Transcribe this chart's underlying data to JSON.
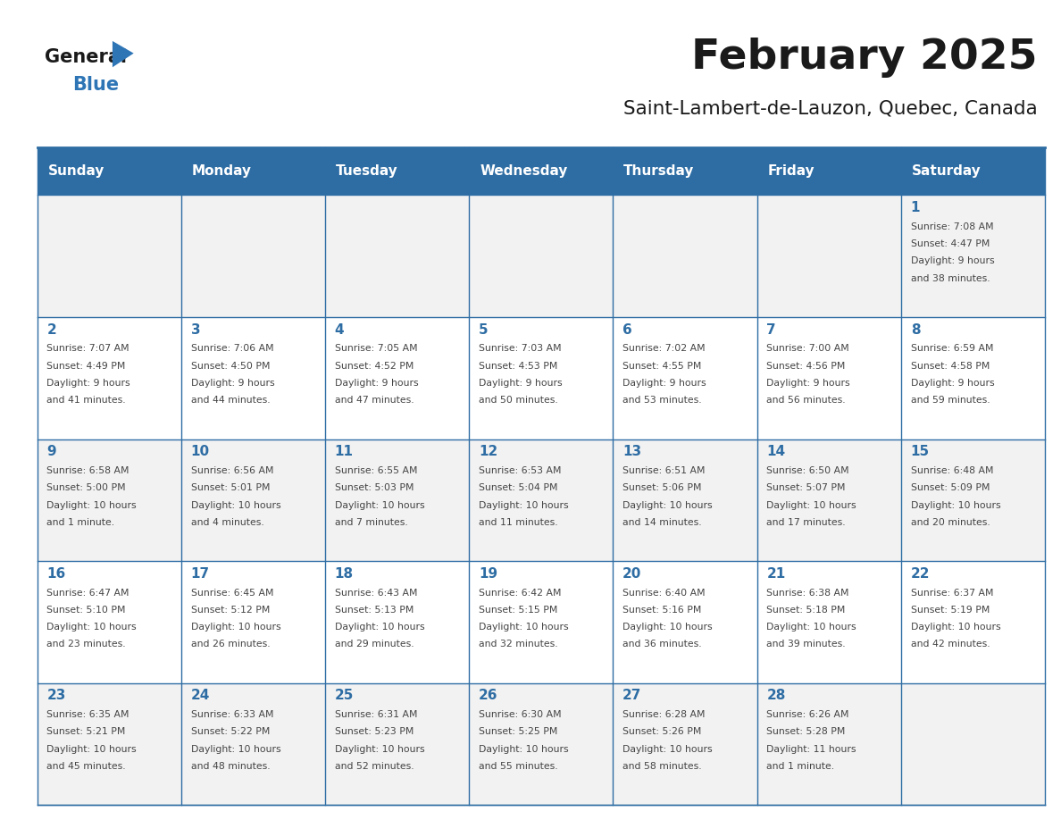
{
  "title": "February 2025",
  "subtitle": "Saint-Lambert-de-Lauzon, Quebec, Canada",
  "header_bg": "#2E6DA4",
  "header_text": "#FFFFFF",
  "cell_bg_light": "#F2F2F2",
  "cell_bg_white": "#FFFFFF",
  "cell_border": "#2E6DA4",
  "day_number_color": "#2E6DA4",
  "info_color": "#444444",
  "days_of_week": [
    "Sunday",
    "Monday",
    "Tuesday",
    "Wednesday",
    "Thursday",
    "Friday",
    "Saturday"
  ],
  "logo_general_color": "#1a1a1a",
  "logo_blue_color": "#2E75B6",
  "calendar_data": [
    [
      null,
      null,
      null,
      null,
      null,
      null,
      {
        "day": "1",
        "sunrise": "7:08 AM",
        "sunset": "4:47 PM",
        "daylight1": "9 hours",
        "daylight2": "and 38 minutes."
      }
    ],
    [
      {
        "day": "2",
        "sunrise": "7:07 AM",
        "sunset": "4:49 PM",
        "daylight1": "9 hours",
        "daylight2": "and 41 minutes."
      },
      {
        "day": "3",
        "sunrise": "7:06 AM",
        "sunset": "4:50 PM",
        "daylight1": "9 hours",
        "daylight2": "and 44 minutes."
      },
      {
        "day": "4",
        "sunrise": "7:05 AM",
        "sunset": "4:52 PM",
        "daylight1": "9 hours",
        "daylight2": "and 47 minutes."
      },
      {
        "day": "5",
        "sunrise": "7:03 AM",
        "sunset": "4:53 PM",
        "daylight1": "9 hours",
        "daylight2": "and 50 minutes."
      },
      {
        "day": "6",
        "sunrise": "7:02 AM",
        "sunset": "4:55 PM",
        "daylight1": "9 hours",
        "daylight2": "and 53 minutes."
      },
      {
        "day": "7",
        "sunrise": "7:00 AM",
        "sunset": "4:56 PM",
        "daylight1": "9 hours",
        "daylight2": "and 56 minutes."
      },
      {
        "day": "8",
        "sunrise": "6:59 AM",
        "sunset": "4:58 PM",
        "daylight1": "9 hours",
        "daylight2": "and 59 minutes."
      }
    ],
    [
      {
        "day": "9",
        "sunrise": "6:58 AM",
        "sunset": "5:00 PM",
        "daylight1": "10 hours",
        "daylight2": "and 1 minute."
      },
      {
        "day": "10",
        "sunrise": "6:56 AM",
        "sunset": "5:01 PM",
        "daylight1": "10 hours",
        "daylight2": "and 4 minutes."
      },
      {
        "day": "11",
        "sunrise": "6:55 AM",
        "sunset": "5:03 PM",
        "daylight1": "10 hours",
        "daylight2": "and 7 minutes."
      },
      {
        "day": "12",
        "sunrise": "6:53 AM",
        "sunset": "5:04 PM",
        "daylight1": "10 hours",
        "daylight2": "and 11 minutes."
      },
      {
        "day": "13",
        "sunrise": "6:51 AM",
        "sunset": "5:06 PM",
        "daylight1": "10 hours",
        "daylight2": "and 14 minutes."
      },
      {
        "day": "14",
        "sunrise": "6:50 AM",
        "sunset": "5:07 PM",
        "daylight1": "10 hours",
        "daylight2": "and 17 minutes."
      },
      {
        "day": "15",
        "sunrise": "6:48 AM",
        "sunset": "5:09 PM",
        "daylight1": "10 hours",
        "daylight2": "and 20 minutes."
      }
    ],
    [
      {
        "day": "16",
        "sunrise": "6:47 AM",
        "sunset": "5:10 PM",
        "daylight1": "10 hours",
        "daylight2": "and 23 minutes."
      },
      {
        "day": "17",
        "sunrise": "6:45 AM",
        "sunset": "5:12 PM",
        "daylight1": "10 hours",
        "daylight2": "and 26 minutes."
      },
      {
        "day": "18",
        "sunrise": "6:43 AM",
        "sunset": "5:13 PM",
        "daylight1": "10 hours",
        "daylight2": "and 29 minutes."
      },
      {
        "day": "19",
        "sunrise": "6:42 AM",
        "sunset": "5:15 PM",
        "daylight1": "10 hours",
        "daylight2": "and 32 minutes."
      },
      {
        "day": "20",
        "sunrise": "6:40 AM",
        "sunset": "5:16 PM",
        "daylight1": "10 hours",
        "daylight2": "and 36 minutes."
      },
      {
        "day": "21",
        "sunrise": "6:38 AM",
        "sunset": "5:18 PM",
        "daylight1": "10 hours",
        "daylight2": "and 39 minutes."
      },
      {
        "day": "22",
        "sunrise": "6:37 AM",
        "sunset": "5:19 PM",
        "daylight1": "10 hours",
        "daylight2": "and 42 minutes."
      }
    ],
    [
      {
        "day": "23",
        "sunrise": "6:35 AM",
        "sunset": "5:21 PM",
        "daylight1": "10 hours",
        "daylight2": "and 45 minutes."
      },
      {
        "day": "24",
        "sunrise": "6:33 AM",
        "sunset": "5:22 PM",
        "daylight1": "10 hours",
        "daylight2": "and 48 minutes."
      },
      {
        "day": "25",
        "sunrise": "6:31 AM",
        "sunset": "5:23 PM",
        "daylight1": "10 hours",
        "daylight2": "and 52 minutes."
      },
      {
        "day": "26",
        "sunrise": "6:30 AM",
        "sunset": "5:25 PM",
        "daylight1": "10 hours",
        "daylight2": "and 55 minutes."
      },
      {
        "day": "27",
        "sunrise": "6:28 AM",
        "sunset": "5:26 PM",
        "daylight1": "10 hours",
        "daylight2": "and 58 minutes."
      },
      {
        "day": "28",
        "sunrise": "6:26 AM",
        "sunset": "5:28 PM",
        "daylight1": "11 hours",
        "daylight2": "and 1 minute."
      },
      null
    ]
  ]
}
